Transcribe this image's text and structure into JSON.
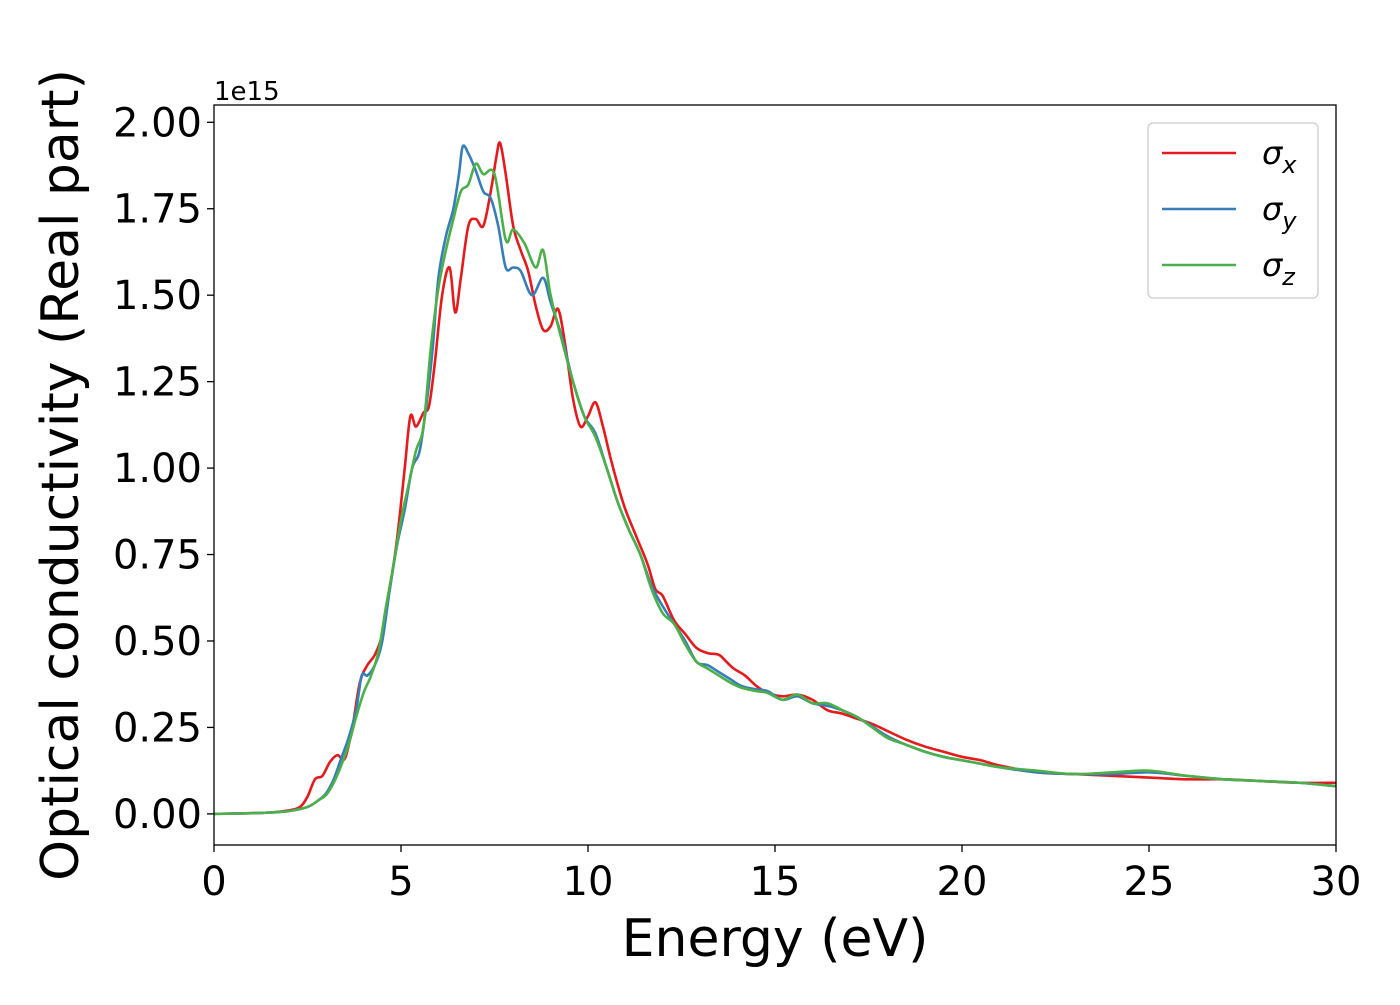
{
  "chart_data": {
    "type": "line",
    "xlabel": "Energy (eV)",
    "ylabel": "Optical conductivity (Real part)",
    "y_offset_label": "1e15",
    "xlim": [
      0,
      30
    ],
    "ylim": [
      -0.09,
      2.05
    ],
    "xticks": [
      0,
      5,
      10,
      15,
      20,
      25,
      30
    ],
    "xtick_labels": [
      "0",
      "5",
      "10",
      "15",
      "20",
      "25",
      "30"
    ],
    "yticks": [
      0,
      0.25,
      0.5,
      0.75,
      1.0,
      1.25,
      1.5,
      1.75,
      2.0
    ],
    "ytick_labels": [
      "0.00",
      "0.25",
      "0.50",
      "0.75",
      "1.00",
      "1.25",
      "1.50",
      "1.75",
      "2.00"
    ],
    "grid": false,
    "legend_position": "top-right",
    "series": [
      {
        "name": "σx",
        "label_base": "σ",
        "label_sub": "x",
        "color": "#e41a1c",
        "points": [
          [
            0,
            0
          ],
          [
            1,
            0.002
          ],
          [
            1.5,
            0.004
          ],
          [
            2,
            0.01
          ],
          [
            2.3,
            0.02
          ],
          [
            2.5,
            0.05
          ],
          [
            2.7,
            0.1
          ],
          [
            2.9,
            0.11
          ],
          [
            3.1,
            0.15
          ],
          [
            3.3,
            0.17
          ],
          [
            3.5,
            0.16
          ],
          [
            3.7,
            0.25
          ],
          [
            3.9,
            0.38
          ],
          [
            4.1,
            0.43
          ],
          [
            4.3,
            0.46
          ],
          [
            4.5,
            0.52
          ],
          [
            4.7,
            0.65
          ],
          [
            4.9,
            0.8
          ],
          [
            5.1,
            1.0
          ],
          [
            5.25,
            1.15
          ],
          [
            5.4,
            1.12
          ],
          [
            5.6,
            1.16
          ],
          [
            5.75,
            1.18
          ],
          [
            5.9,
            1.3
          ],
          [
            6.1,
            1.5
          ],
          [
            6.3,
            1.58
          ],
          [
            6.45,
            1.45
          ],
          [
            6.6,
            1.55
          ],
          [
            6.8,
            1.7
          ],
          [
            7.0,
            1.72
          ],
          [
            7.2,
            1.7
          ],
          [
            7.4,
            1.8
          ],
          [
            7.55,
            1.9
          ],
          [
            7.65,
            1.94
          ],
          [
            7.8,
            1.85
          ],
          [
            8.0,
            1.7
          ],
          [
            8.2,
            1.63
          ],
          [
            8.4,
            1.57
          ],
          [
            8.6,
            1.47
          ],
          [
            8.8,
            1.4
          ],
          [
            9.0,
            1.41
          ],
          [
            9.2,
            1.46
          ],
          [
            9.4,
            1.35
          ],
          [
            9.6,
            1.2
          ],
          [
            9.8,
            1.12
          ],
          [
            10.0,
            1.15
          ],
          [
            10.2,
            1.19
          ],
          [
            10.4,
            1.12
          ],
          [
            10.6,
            1.03
          ],
          [
            10.8,
            0.95
          ],
          [
            11.0,
            0.88
          ],
          [
            11.3,
            0.8
          ],
          [
            11.6,
            0.72
          ],
          [
            11.8,
            0.65
          ],
          [
            12.0,
            0.63
          ],
          [
            12.3,
            0.56
          ],
          [
            12.6,
            0.52
          ],
          [
            12.9,
            0.48
          ],
          [
            13.2,
            0.465
          ],
          [
            13.5,
            0.46
          ],
          [
            13.7,
            0.44
          ],
          [
            13.9,
            0.42
          ],
          [
            14.2,
            0.4
          ],
          [
            14.5,
            0.37
          ],
          [
            14.8,
            0.35
          ],
          [
            15.2,
            0.34
          ],
          [
            15.6,
            0.345
          ],
          [
            16.0,
            0.33
          ],
          [
            16.4,
            0.3
          ],
          [
            16.8,
            0.29
          ],
          [
            17.2,
            0.275
          ],
          [
            17.6,
            0.26
          ],
          [
            18.0,
            0.24
          ],
          [
            18.5,
            0.215
          ],
          [
            19.0,
            0.195
          ],
          [
            19.5,
            0.18
          ],
          [
            20.0,
            0.165
          ],
          [
            20.5,
            0.155
          ],
          [
            21.0,
            0.14
          ],
          [
            22.0,
            0.12
          ],
          [
            23.0,
            0.115
          ],
          [
            24.0,
            0.11
          ],
          [
            25.0,
            0.105
          ],
          [
            26.0,
            0.1
          ],
          [
            27.0,
            0.1
          ],
          [
            28.0,
            0.095
          ],
          [
            29.0,
            0.09
          ],
          [
            30.0,
            0.09
          ]
        ]
      },
      {
        "name": "σy",
        "label_base": "σ",
        "label_sub": "y",
        "color": "#377eb8",
        "points": [
          [
            0,
            0
          ],
          [
            1,
            0.002
          ],
          [
            1.5,
            0.004
          ],
          [
            2,
            0.008
          ],
          [
            2.5,
            0.02
          ],
          [
            2.8,
            0.04
          ],
          [
            3.0,
            0.06
          ],
          [
            3.2,
            0.1
          ],
          [
            3.4,
            0.16
          ],
          [
            3.6,
            0.22
          ],
          [
            3.8,
            0.3
          ],
          [
            3.95,
            0.4
          ],
          [
            4.1,
            0.4
          ],
          [
            4.3,
            0.43
          ],
          [
            4.5,
            0.5
          ],
          [
            4.7,
            0.65
          ],
          [
            4.9,
            0.78
          ],
          [
            5.1,
            0.88
          ],
          [
            5.3,
            1.0
          ],
          [
            5.5,
            1.05
          ],
          [
            5.7,
            1.2
          ],
          [
            5.85,
            1.35
          ],
          [
            6.0,
            1.55
          ],
          [
            6.2,
            1.67
          ],
          [
            6.4,
            1.75
          ],
          [
            6.55,
            1.85
          ],
          [
            6.65,
            1.93
          ],
          [
            6.8,
            1.91
          ],
          [
            7.0,
            1.86
          ],
          [
            7.2,
            1.8
          ],
          [
            7.4,
            1.78
          ],
          [
            7.6,
            1.7
          ],
          [
            7.8,
            1.58
          ],
          [
            8.0,
            1.58
          ],
          [
            8.2,
            1.57
          ],
          [
            8.5,
            1.5
          ],
          [
            8.8,
            1.55
          ],
          [
            9.0,
            1.48
          ],
          [
            9.3,
            1.38
          ],
          [
            9.6,
            1.25
          ],
          [
            9.9,
            1.15
          ],
          [
            10.2,
            1.1
          ],
          [
            10.5,
            1.0
          ],
          [
            10.8,
            0.9
          ],
          [
            11.1,
            0.82
          ],
          [
            11.4,
            0.75
          ],
          [
            11.7,
            0.66
          ],
          [
            12.0,
            0.6
          ],
          [
            12.3,
            0.55
          ],
          [
            12.6,
            0.5
          ],
          [
            12.9,
            0.44
          ],
          [
            13.2,
            0.43
          ],
          [
            13.5,
            0.41
          ],
          [
            13.8,
            0.39
          ],
          [
            14.1,
            0.37
          ],
          [
            14.5,
            0.36
          ],
          [
            14.8,
            0.355
          ],
          [
            15.2,
            0.33
          ],
          [
            15.6,
            0.34
          ],
          [
            16.0,
            0.32
          ],
          [
            16.5,
            0.31
          ],
          [
            17.0,
            0.29
          ],
          [
            17.5,
            0.26
          ],
          [
            18.0,
            0.225
          ],
          [
            18.5,
            0.2
          ],
          [
            19.0,
            0.18
          ],
          [
            19.5,
            0.165
          ],
          [
            20.0,
            0.155
          ],
          [
            20.5,
            0.145
          ],
          [
            21.0,
            0.135
          ],
          [
            22.0,
            0.12
          ],
          [
            23.0,
            0.115
          ],
          [
            24.0,
            0.115
          ],
          [
            25.0,
            0.12
          ],
          [
            26.0,
            0.11
          ],
          [
            27.0,
            0.1
          ],
          [
            28.0,
            0.095
          ],
          [
            29.0,
            0.09
          ],
          [
            30.0,
            0.08
          ]
        ]
      },
      {
        "name": "σz",
        "label_base": "σ",
        "label_sub": "z",
        "color": "#4daf4a",
        "points": [
          [
            0,
            0
          ],
          [
            1,
            0.002
          ],
          [
            1.5,
            0.004
          ],
          [
            2,
            0.008
          ],
          [
            2.5,
            0.02
          ],
          [
            2.8,
            0.04
          ],
          [
            3.0,
            0.055
          ],
          [
            3.2,
            0.09
          ],
          [
            3.4,
            0.14
          ],
          [
            3.6,
            0.2
          ],
          [
            3.8,
            0.28
          ],
          [
            4.0,
            0.35
          ],
          [
            4.2,
            0.4
          ],
          [
            4.4,
            0.47
          ],
          [
            4.6,
            0.6
          ],
          [
            4.8,
            0.72
          ],
          [
            5.0,
            0.85
          ],
          [
            5.2,
            0.95
          ],
          [
            5.4,
            1.05
          ],
          [
            5.6,
            1.12
          ],
          [
            5.8,
            1.35
          ],
          [
            6.0,
            1.52
          ],
          [
            6.2,
            1.63
          ],
          [
            6.4,
            1.72
          ],
          [
            6.6,
            1.8
          ],
          [
            6.8,
            1.82
          ],
          [
            7.0,
            1.88
          ],
          [
            7.2,
            1.85
          ],
          [
            7.5,
            1.85
          ],
          [
            7.8,
            1.66
          ],
          [
            8.0,
            1.69
          ],
          [
            8.3,
            1.65
          ],
          [
            8.6,
            1.58
          ],
          [
            8.8,
            1.63
          ],
          [
            9.0,
            1.5
          ],
          [
            9.3,
            1.37
          ],
          [
            9.6,
            1.25
          ],
          [
            9.9,
            1.15
          ],
          [
            10.2,
            1.09
          ],
          [
            10.5,
            1.0
          ],
          [
            10.8,
            0.9
          ],
          [
            11.1,
            0.82
          ],
          [
            11.4,
            0.75
          ],
          [
            11.7,
            0.65
          ],
          [
            12.0,
            0.58
          ],
          [
            12.3,
            0.55
          ],
          [
            12.6,
            0.49
          ],
          [
            12.9,
            0.44
          ],
          [
            13.2,
            0.42
          ],
          [
            13.5,
            0.4
          ],
          [
            13.8,
            0.38
          ],
          [
            14.1,
            0.365
          ],
          [
            14.5,
            0.355
          ],
          [
            14.8,
            0.35
          ],
          [
            15.2,
            0.33
          ],
          [
            15.6,
            0.345
          ],
          [
            16.0,
            0.32
          ],
          [
            16.4,
            0.32
          ],
          [
            16.8,
            0.3
          ],
          [
            17.2,
            0.28
          ],
          [
            17.6,
            0.25
          ],
          [
            18.0,
            0.22
          ],
          [
            18.5,
            0.2
          ],
          [
            19.0,
            0.18
          ],
          [
            19.5,
            0.165
          ],
          [
            20.0,
            0.155
          ],
          [
            20.5,
            0.145
          ],
          [
            21.0,
            0.135
          ],
          [
            22.0,
            0.125
          ],
          [
            23.0,
            0.115
          ],
          [
            24.0,
            0.12
          ],
          [
            25.0,
            0.125
          ],
          [
            26.0,
            0.11
          ],
          [
            27.0,
            0.1
          ],
          [
            28.0,
            0.095
          ],
          [
            29.0,
            0.09
          ],
          [
            30.0,
            0.08
          ]
        ]
      }
    ]
  }
}
